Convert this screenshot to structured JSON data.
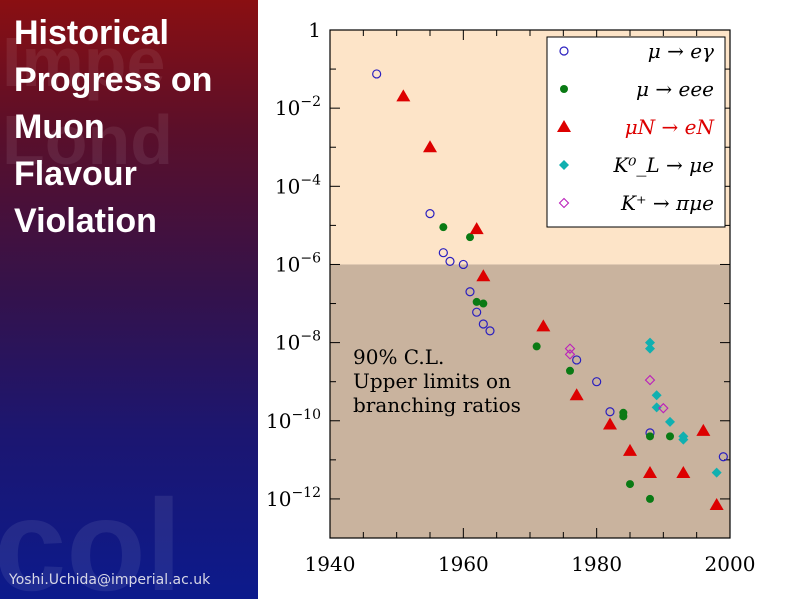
{
  "slide": {
    "title_lines": [
      "Historical",
      "Progress on",
      "Muon",
      "Flavour",
      "Violation"
    ],
    "footer_email": "Yoshi.Uchida@imperial.ac.uk"
  },
  "chart_data": {
    "type": "scatter",
    "title": "",
    "xlabel": "",
    "ylabel": "",
    "xlim": [
      1940,
      2000
    ],
    "ylim": [
      1e-13,
      1
    ],
    "yscale": "log",
    "grid": false,
    "legend_position": "top-right",
    "x_ticks": [
      "1940",
      "1960",
      "1980",
      "2000"
    ],
    "y_ticks": [
      {
        "value": 1,
        "label": "1"
      },
      {
        "value": 0.01,
        "label": "10",
        "exp": "−2"
      },
      {
        "value": 0.0001,
        "label": "10",
        "exp": "−4"
      },
      {
        "value": 1e-06,
        "label": "10",
        "exp": "−6"
      },
      {
        "value": 1e-08,
        "label": "10",
        "exp": "−8"
      },
      {
        "value": 1e-10,
        "label": "10",
        "exp": "−10"
      },
      {
        "value": 1e-12,
        "label": "10",
        "exp": "−12"
      }
    ],
    "bands": [
      {
        "from": 1,
        "to": 1e-06,
        "color": "#fde4c8"
      },
      {
        "from": 1e-06,
        "to": 1e-13,
        "color": "#c9b39e"
      }
    ],
    "annotation": [
      "90% C.L.",
      "Upper limits on",
      "branching ratios"
    ],
    "series": [
      {
        "name": "μ → eγ",
        "marker": "open-circle",
        "color": "#2a1fbf",
        "points": [
          [
            1947,
            0.075
          ],
          [
            1955,
            2e-05
          ],
          [
            1957,
            2e-06
          ],
          [
            1958,
            1.2e-06
          ],
          [
            1960,
            1e-06
          ],
          [
            1961,
            2e-07
          ],
          [
            1962,
            6e-08
          ],
          [
            1963,
            3e-08
          ],
          [
            1964,
            2e-08
          ],
          [
            1977,
            3.6e-09
          ],
          [
            1980,
            1e-09
          ],
          [
            1982,
            1.7e-10
          ],
          [
            1988,
            4.9e-11
          ],
          [
            1999,
            1.2e-11
          ]
        ]
      },
      {
        "name": "μ → eee",
        "marker": "filled-circle",
        "color": "#0a7a14",
        "points": [
          [
            1957,
            9e-06
          ],
          [
            1961,
            5e-06
          ],
          [
            1962,
            1.1e-07
          ],
          [
            1963,
            1e-07
          ],
          [
            1971,
            8e-09
          ],
          [
            1976,
            1.9e-09
          ],
          [
            1984,
            1.6e-10
          ],
          [
            1984,
            1.3e-10
          ],
          [
            1985,
            2.4e-12
          ],
          [
            1988,
            4e-11
          ],
          [
            1988,
            1e-12
          ],
          [
            1991,
            4e-11
          ]
        ]
      },
      {
        "name": "μN → eN",
        "marker": "filled-triangle",
        "color": "#dd0000",
        "points": [
          [
            1951,
            0.02
          ],
          [
            1955,
            0.001
          ],
          [
            1962,
            8e-06
          ],
          [
            1963,
            5e-07
          ],
          [
            1972,
            2.6e-08
          ],
          [
            1977,
            4.5e-10
          ],
          [
            1982,
            8e-11
          ],
          [
            1985,
            1.7e-11
          ],
          [
            1988,
            4.6e-12
          ],
          [
            1993,
            4.6e-12
          ],
          [
            1996,
            5.5e-11
          ],
          [
            1998,
            7e-13
          ]
        ]
      },
      {
        "name": "K⁰_L → μe",
        "marker": "filled-diamond",
        "color": "#10b0b0",
        "points": [
          [
            1988,
            1e-08
          ],
          [
            1988,
            7e-09
          ],
          [
            1989,
            4.5e-10
          ],
          [
            1989,
            2.2e-10
          ],
          [
            1991,
            9.4e-11
          ],
          [
            1993,
            4e-11
          ],
          [
            1993,
            3.3e-11
          ],
          [
            1998,
            4.7e-12
          ]
        ]
      },
      {
        "name": "K⁺ → πμe",
        "marker": "open-diamond",
        "color": "#bb20bb",
        "points": [
          [
            1976,
            7e-09
          ],
          [
            1976,
            5e-09
          ],
          [
            1988,
            1.1e-09
          ],
          [
            1990,
            2.1e-10
          ]
        ]
      }
    ]
  }
}
